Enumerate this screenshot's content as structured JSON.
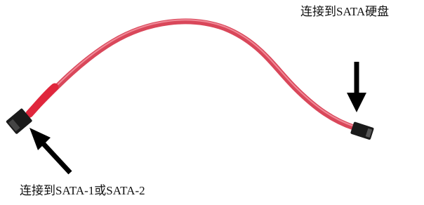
{
  "labels": {
    "hard_drive": "连接到SATA硬盘",
    "motherboard": "连接到SATA-1或SATA-2"
  }
}
